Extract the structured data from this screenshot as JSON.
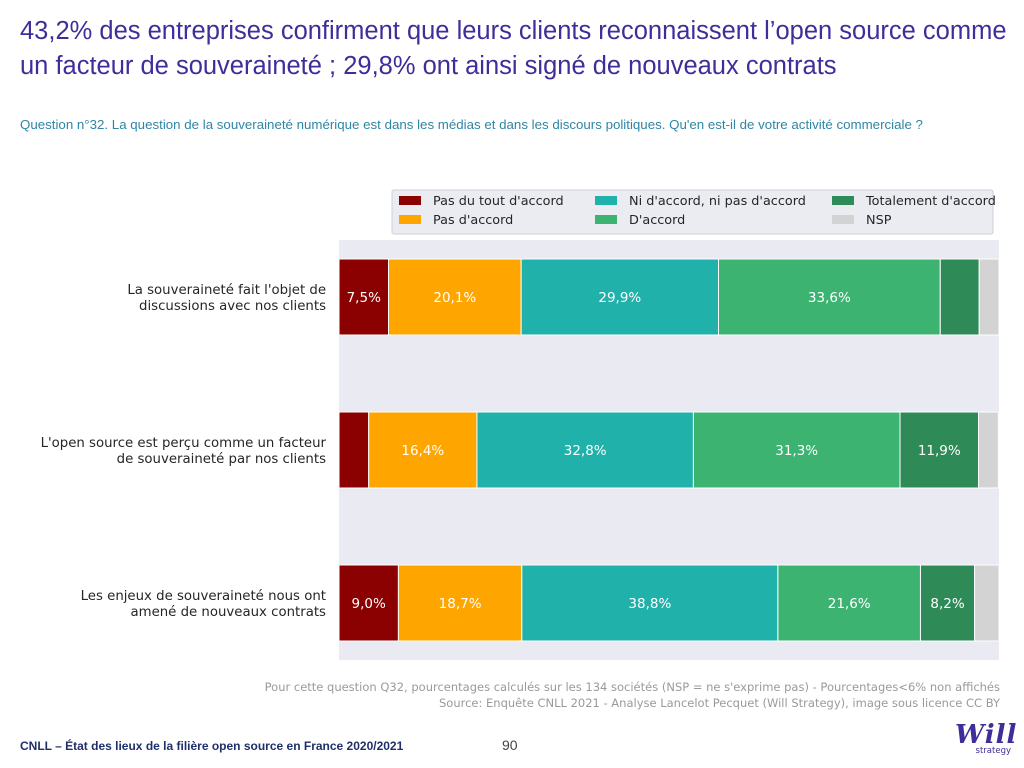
{
  "header": {
    "title": "43,2% des entreprises confirment que leurs clients reconnaissent l’open source comme un facteur de souveraineté ; 29,8% ont ainsi signé de nouveaux contrats",
    "subtitle": "Question n°32. La question de la souveraineté numérique est dans les médias et dans les discours politiques. Qu'en est-il de votre activité commerciale ?"
  },
  "notes": {
    "line1": "Pour cette question Q32, pourcentages calculés sur les 134 sociétés (NSP = ne s'exprime pas) - Pourcentages<6% non affichés",
    "line2": "Source: Enquête CNLL 2021 - Analyse Lancelot Pecquet (Will Strategy), image sous licence CC BY"
  },
  "footer": {
    "left": "CNLL – État des lieux de la filière open source en France 2020/2021",
    "page": "90",
    "logo_word": "Will",
    "logo_sub": "strategy"
  },
  "chart_data": {
    "type": "bar",
    "orientation": "horizontal",
    "stacked": true,
    "xlim": [
      0,
      100
    ],
    "grid": false,
    "legend_position": "top-right",
    "categories": [
      "La souveraineté fait l'objet de discussions avec nos clients",
      "L'open source est perçu comme un facteur de souveraineté par nos clients",
      "Les enjeux de souveraineté nous ont amené de nouveaux contrats"
    ],
    "series": [
      {
        "name": "Pas du tout d'accord",
        "color": "#8b0000",
        "values": [
          7.5,
          4.5,
          9.0
        ]
      },
      {
        "name": "Pas d'accord",
        "color": "#ffa500",
        "values": [
          20.1,
          16.4,
          18.7
        ]
      },
      {
        "name": "Ni d'accord, ni pas d'accord",
        "color": "#20b2aa",
        "values": [
          29.9,
          32.8,
          38.8
        ]
      },
      {
        "name": "D'accord",
        "color": "#3cb371",
        "values": [
          33.6,
          31.3,
          21.6
        ]
      },
      {
        "name": "Totalement d'accord",
        "color": "#2e8b57",
        "values": [
          5.9,
          11.9,
          8.2
        ]
      },
      {
        "name": "NSP",
        "color": "#d3d3d3",
        "values": [
          3.0,
          3.0,
          3.7
        ]
      }
    ],
    "labels": [
      [
        "7,5%",
        "20,1%",
        "29,9%",
        "33,6%",
        "",
        ""
      ],
      [
        "",
        "16,4%",
        "32,8%",
        "31,3%",
        "11,9%",
        ""
      ],
      [
        "9,0%",
        "18,7%",
        "38,8%",
        "21,6%",
        "8,2%",
        ""
      ]
    ],
    "category_lines": [
      [
        "La souveraineté fait l'objet de",
        "discussions avec nos clients"
      ],
      [
        "L'open source est perçu comme un facteur",
        "de souveraineté par nos clients"
      ],
      [
        "Les enjeux de souveraineté nous ont",
        "amené de nouveaux contrats"
      ]
    ],
    "legend_order": [
      "Pas du tout d'accord",
      "Ni d'accord, ni pas d'accord",
      "Totalement d'accord",
      "Pas d'accord",
      "D'accord",
      "NSP"
    ]
  }
}
